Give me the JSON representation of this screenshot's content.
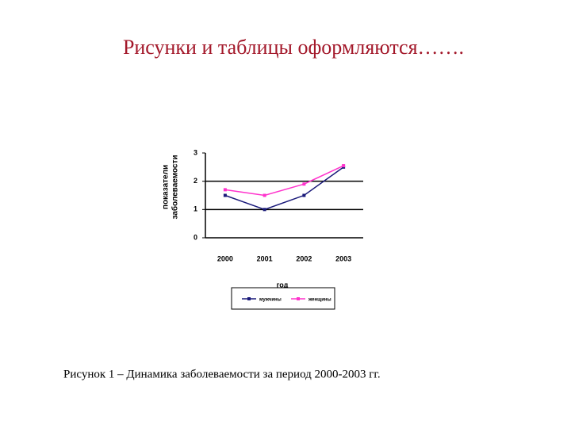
{
  "slide_title": "Рисунки и таблицы оформляются…….",
  "caption": "Рисунок 1 – Динамика заболеваемости за период 2000-2003 гг.",
  "chart_data": {
    "type": "line",
    "y_label": [
      "показатели",
      "заболеваемости"
    ],
    "x_label": "год",
    "categories": [
      "2000",
      "2001",
      "2002",
      "2003"
    ],
    "series": [
      {
        "name": "мужчины",
        "color": "#1a1a7a",
        "values": [
          1.5,
          1,
          1.5,
          2.5
        ]
      },
      {
        "name": "женщины",
        "color": "#ff33cc",
        "values": [
          1.7,
          1.5,
          1.9,
          2.55
        ]
      }
    ],
    "ylim": [
      0,
      3
    ],
    "yticks": [
      0,
      1,
      2,
      3
    ],
    "grid": true,
    "legend": "bottom"
  }
}
